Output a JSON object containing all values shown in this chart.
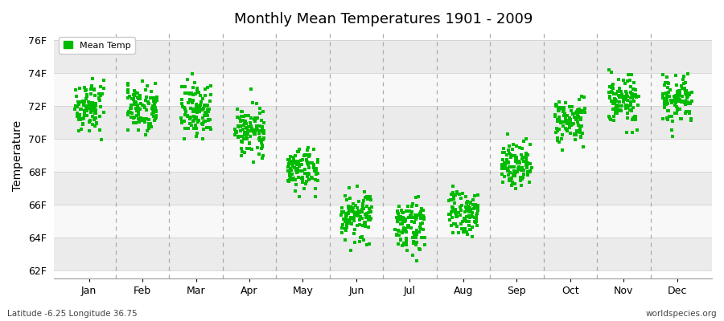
{
  "title": "Monthly Mean Temperatures 1901 - 2009",
  "ylabel": "Temperature",
  "xlabel_months": [
    "Jan",
    "Feb",
    "Mar",
    "Apr",
    "May",
    "Jun",
    "Jul",
    "Aug",
    "Sep",
    "Oct",
    "Nov",
    "Dec"
  ],
  "ytick_labels": [
    "62F",
    "64F",
    "66F",
    "68F",
    "70F",
    "72F",
    "74F",
    "76F"
  ],
  "ytick_values": [
    62,
    64,
    66,
    68,
    70,
    72,
    74,
    76
  ],
  "ylim": [
    61.5,
    76.5
  ],
  "mean_temps_f": [
    71.96,
    71.96,
    71.78,
    70.52,
    68.18,
    65.3,
    64.76,
    65.48,
    68.54,
    71.06,
    72.32,
    72.32
  ],
  "scatter_color": "#00bb00",
  "background_color": "#ffffff",
  "legend_label": "Mean Temp",
  "footer_left": "Latitude -6.25 Longitude 36.75",
  "footer_right": "worldspecies.org",
  "n_years": 109,
  "marker_size": 3.5,
  "band_colors": [
    "#ebebeb",
    "#f8f8f8"
  ],
  "monthly_spreads": [
    0.75,
    0.75,
    0.85,
    0.7,
    0.7,
    0.75,
    0.75,
    0.7,
    0.65,
    0.7,
    0.75,
    0.75
  ],
  "dashed_line_color": "#aaaaaa",
  "xlim": [
    0,
    13
  ]
}
